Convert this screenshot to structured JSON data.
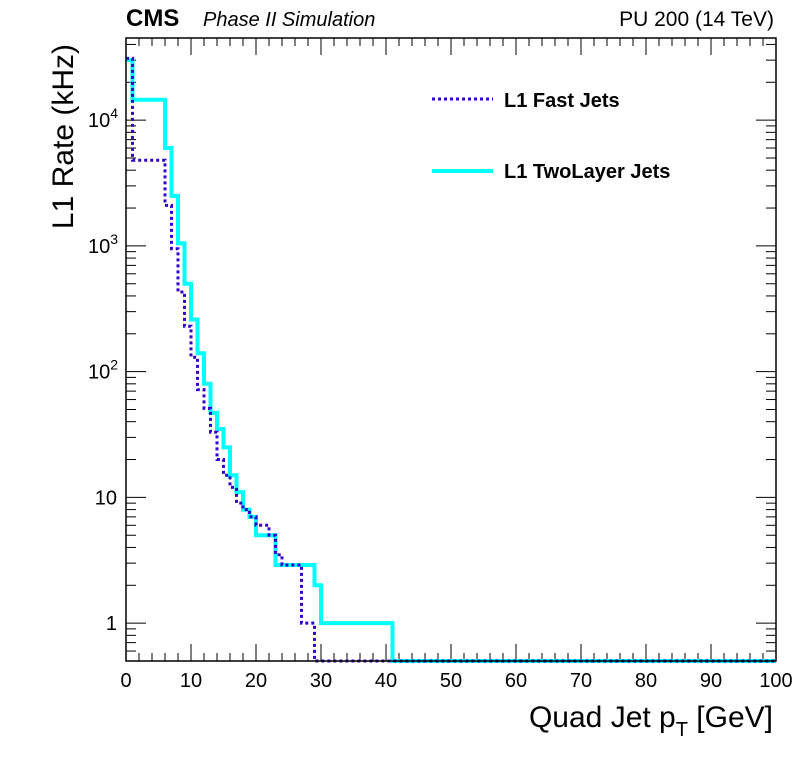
{
  "header": {
    "experiment": "CMS",
    "subtitle": "Phase II Simulation",
    "conditions": "PU 200 (14 TeV)"
  },
  "chart_data": {
    "type": "line",
    "title": "",
    "xlabel_main": "Quad Jet p",
    "xlabel_sub": "T",
    "xlabel_unit": " [GeV]",
    "ylabel": "L1 Rate (kHz)",
    "xlim": [
      0,
      100
    ],
    "ylim": [
      0.5,
      45000
    ],
    "y_scale": "log",
    "grid": false,
    "legend_placement": "top-right",
    "x_ticks": [
      0,
      10,
      20,
      30,
      40,
      50,
      60,
      70,
      80,
      90,
      100
    ],
    "y_ticks": [
      {
        "value": 1,
        "label": "1"
      },
      {
        "value": 10,
        "label": "10"
      },
      {
        "value": 100,
        "label": "10",
        "exp": "2"
      },
      {
        "value": 1000,
        "label": "10",
        "exp": "3"
      },
      {
        "value": 10000,
        "label": "10",
        "exp": "4"
      }
    ],
    "series": [
      {
        "name": "L1 Fast Jets",
        "color": "#3300cc",
        "style": "dotted",
        "edges": [
          0,
          1,
          6,
          7,
          8,
          9,
          10,
          11,
          12,
          13,
          14,
          15,
          16,
          17,
          18,
          19,
          20,
          22,
          23,
          24,
          27,
          29,
          30,
          41,
          100
        ],
        "values": [
          31000,
          4800,
          2100,
          950,
          430,
          230,
          130,
          72,
          51,
          33,
          20,
          15,
          12,
          9,
          8,
          7,
          6,
          5,
          3.5,
          2.9,
          1,
          0.5,
          0.5,
          0.5
        ]
      },
      {
        "name": "L1 TwoLayer Jets",
        "color": "#00ffff",
        "style": "solid",
        "edges": [
          0,
          1,
          6,
          7,
          8,
          9,
          10,
          11,
          12,
          13,
          14,
          15,
          16,
          17,
          18,
          19,
          20,
          22,
          23,
          24,
          27,
          29,
          30,
          41,
          100
        ],
        "values": [
          30000,
          14500,
          6000,
          2500,
          1050,
          500,
          260,
          140,
          80,
          47,
          35,
          25,
          15,
          11,
          8,
          7,
          5,
          5,
          2.9,
          2.9,
          2.9,
          2,
          1,
          0.5
        ]
      }
    ]
  }
}
